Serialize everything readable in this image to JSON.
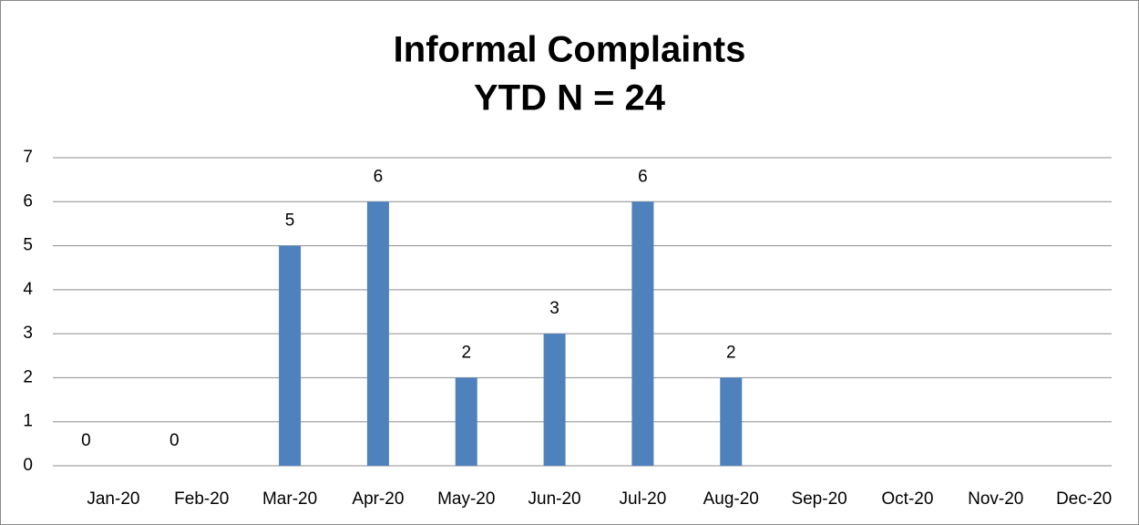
{
  "chart_data": {
    "type": "bar",
    "title": "Informal Complaints",
    "subtitle": "YTD N = 24",
    "categories": [
      "Jan-20",
      "Feb-20",
      "Mar-20",
      "Apr-20",
      "May-20",
      "Jun-20",
      "Jul-20",
      "Aug-20",
      "Sep-20",
      "Oct-20",
      "Nov-20",
      "Dec-20"
    ],
    "values": [
      0,
      0,
      5,
      6,
      2,
      3,
      6,
      2,
      null,
      null,
      null,
      null
    ],
    "color": "#4f81bd",
    "ylim": [
      0,
      7
    ],
    "yticks": [
      0,
      1,
      2,
      3,
      4,
      5,
      6,
      7
    ],
    "grid": true
  }
}
